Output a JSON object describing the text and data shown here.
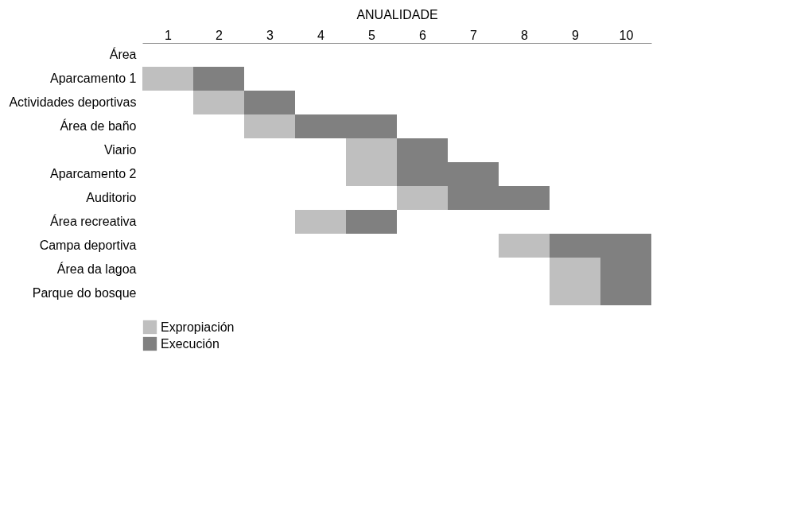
{
  "chart_data": {
    "type": "bar",
    "orientation": "horizontal",
    "xlabel": "ANUALIDADE",
    "legend": "bottom",
    "categories": [
      "Área",
      "Aparcamento 1",
      "Actividades deportivas",
      "Área de baño",
      "Viario",
      "Aparcamento 2",
      "Auditorio",
      "Área recreativa",
      "Campa deportiva",
      "Área da lagoa",
      "Parque do bosque"
    ],
    "series": [
      {
        "name": "Expropiación",
        "color": "#bfbfbf",
        "base": [
          null,
          0,
          1,
          2,
          4,
          4,
          5,
          3,
          7,
          8,
          8
        ],
        "values": [
          null,
          1,
          1,
          1,
          1,
          1,
          1,
          1,
          1,
          1,
          1
        ]
      },
      {
        "name": "Execución",
        "color": "#808080",
        "base": [
          null,
          1,
          2,
          3,
          5,
          5,
          6,
          4,
          8,
          9,
          9
        ],
        "values": [
          null,
          1,
          1,
          2,
          1,
          2,
          2,
          1,
          2,
          1,
          1
        ]
      }
    ],
    "xlim": [
      0,
      10
    ],
    "xticks": [
      {
        "value": 0.5,
        "label": "1"
      },
      {
        "value": 1.5,
        "label": "2"
      },
      {
        "value": 2.5,
        "label": "3"
      },
      {
        "value": 3.5,
        "label": "4"
      },
      {
        "value": 4.5,
        "label": "5"
      },
      {
        "value": 5.5,
        "label": "6"
      },
      {
        "value": 6.5,
        "label": "7"
      },
      {
        "value": 7.5,
        "label": "8"
      },
      {
        "value": 8.5,
        "label": "9"
      },
      {
        "value": 9.5,
        "label": "10"
      }
    ]
  }
}
